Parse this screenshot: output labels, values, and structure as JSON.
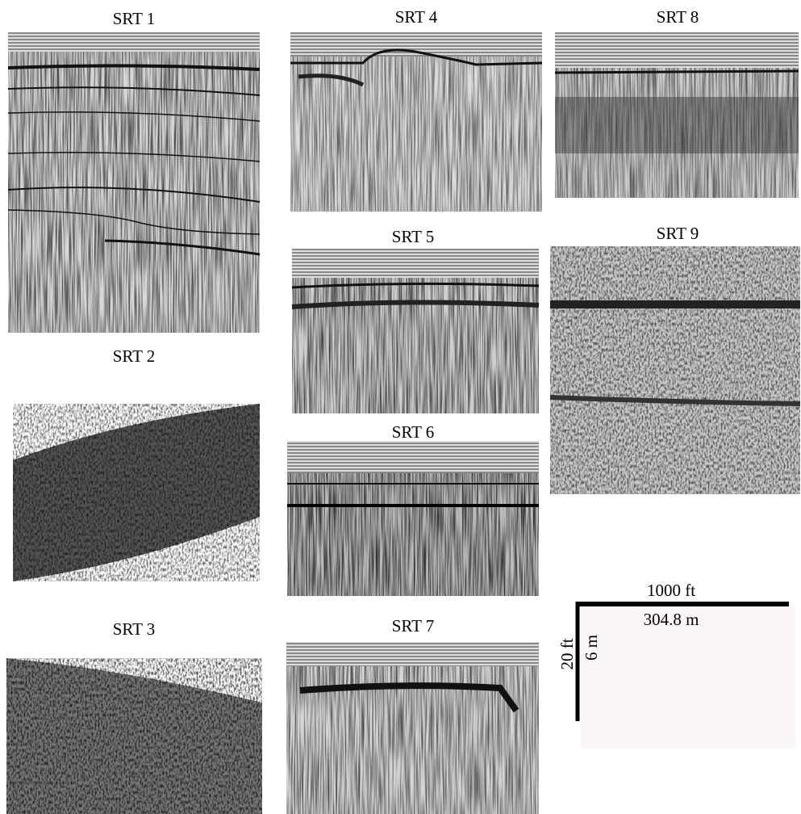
{
  "panels": [
    {
      "title": "SRT 1"
    },
    {
      "title": "SRT 2"
    },
    {
      "title": "SRT 3"
    },
    {
      "title": "SRT 4"
    },
    {
      "title": "SRT 5"
    },
    {
      "title": "SRT 6"
    },
    {
      "title": "SRT 7"
    },
    {
      "title": "SRT 8"
    },
    {
      "title": "SRT 9"
    }
  ],
  "scale_bar": {
    "horizontal_top": "1000 ft",
    "horizontal_bottom": "304.8 m",
    "vertical_left": "20 ft",
    "vertical_right": "6 m"
  }
}
